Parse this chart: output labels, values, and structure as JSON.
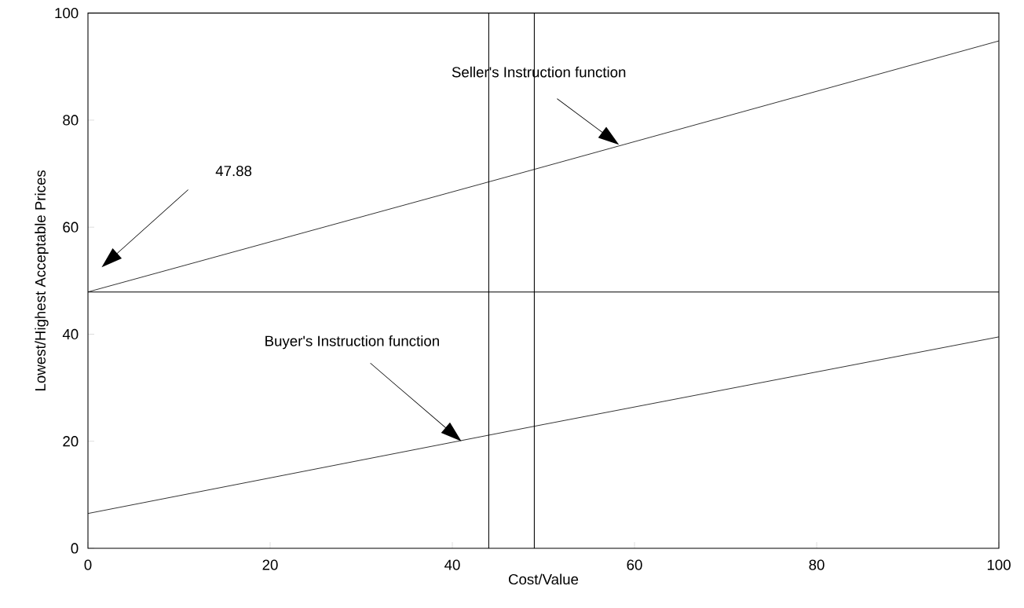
{
  "chart_data": {
    "type": "line",
    "xlabel": "Cost/Value",
    "ylabel": "Lowest/Highest Acceptable Prices",
    "xlim": [
      0,
      100
    ],
    "ylim": [
      0,
      100
    ],
    "xticks": [
      0,
      20,
      40,
      60,
      80,
      100
    ],
    "yticks": [
      0,
      20,
      40,
      60,
      80,
      100
    ],
    "series": [
      {
        "color": "#000000",
        "x": [
          0,
          49,
          100
        ],
        "values": [
          47.9,
          70.8,
          94.8
        ]
      },
      {
        "color": "#000000",
        "x": [
          0,
          49,
          100
        ],
        "values": [
          6.5,
          22.8,
          39.5
        ]
      }
    ],
    "ref_lines": [
      {
        "axis": "x",
        "value": 44,
        "color": "#000000"
      },
      {
        "axis": "x",
        "value": 49,
        "color": "#000000"
      },
      {
        "axis": "y",
        "value": 47.88,
        "color": "#000000"
      }
    ],
    "annotations": [
      "Seller's Instruction function",
      "Buyer's Instruction function",
      "47.88"
    ],
    "marker": "none",
    "line_style": "solid",
    "grid": false
  }
}
